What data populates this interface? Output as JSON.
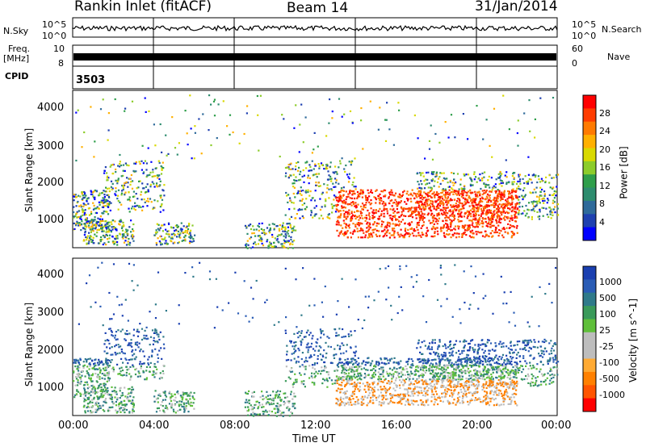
{
  "header": {
    "station": "Rankin Inlet (fitACF)",
    "beam": "Beam 14",
    "date": "31/Jan/2014"
  },
  "panels": {
    "nsky": {
      "left_label": "N.Sky",
      "right_label": "N.Search",
      "left_ticks": [
        "10^5",
        "10^0"
      ],
      "right_ticks": [
        "10^5",
        "10^0"
      ]
    },
    "freq": {
      "left_label_1": "Freq.",
      "left_label_2": "[MHz]",
      "right_label": "Nave",
      "left_ticks": [
        "10",
        "8"
      ],
      "right_ticks": [
        "60",
        "0"
      ]
    },
    "cpid": {
      "label": "CPID",
      "value": "3503"
    }
  },
  "colorbars": {
    "power": {
      "title": "Power [dB]",
      "tick_labels": [
        "28",
        "24",
        "20",
        "16",
        "12",
        "8",
        "4"
      ],
      "colors": [
        "#ff0000",
        "#ff3c00",
        "#ff7a00",
        "#ffb000",
        "#d9d900",
        "#8ccc2a",
        "#2e9e4a",
        "#2d8c6e",
        "#2e6a9a",
        "#1e40b0",
        "#0000ff"
      ]
    },
    "velocity": {
      "title": "Velocity [m s^-1]",
      "tick_labels": [
        "1000",
        "500",
        "100",
        "25",
        "-25",
        "-100",
        "-500",
        "-1000"
      ],
      "colors": [
        "#1a3fb0",
        "#2a5cb5",
        "#2f7a8a",
        "#3a9a5a",
        "#5fbf3a",
        "#bdbdbd",
        "#bdbdbd",
        "#ffaa33",
        "#ff8000",
        "#ff5500",
        "#ff0000"
      ]
    }
  },
  "chart_data": [
    {
      "type": "heatmap",
      "name": "power",
      "ylabel": "Slant Range [km]",
      "y_ticks": [
        "1000",
        "2000",
        "3000",
        "4000"
      ],
      "ylim": [
        200,
        4500
      ],
      "xlim": [
        0,
        24
      ],
      "colorbar_units": "dB"
    },
    {
      "type": "heatmap",
      "name": "velocity",
      "xlabel": "Time UT",
      "ylabel": "Slant Range [km]",
      "x_ticks": [
        "00:00",
        "04:00",
        "08:00",
        "12:00",
        "16:00",
        "20:00",
        "00:00"
      ],
      "y_ticks": [
        "1000",
        "2000",
        "3000",
        "4000"
      ],
      "ylim": [
        200,
        4500
      ],
      "xlim": [
        0,
        24
      ],
      "colorbar_units": "m s^-1"
    }
  ]
}
